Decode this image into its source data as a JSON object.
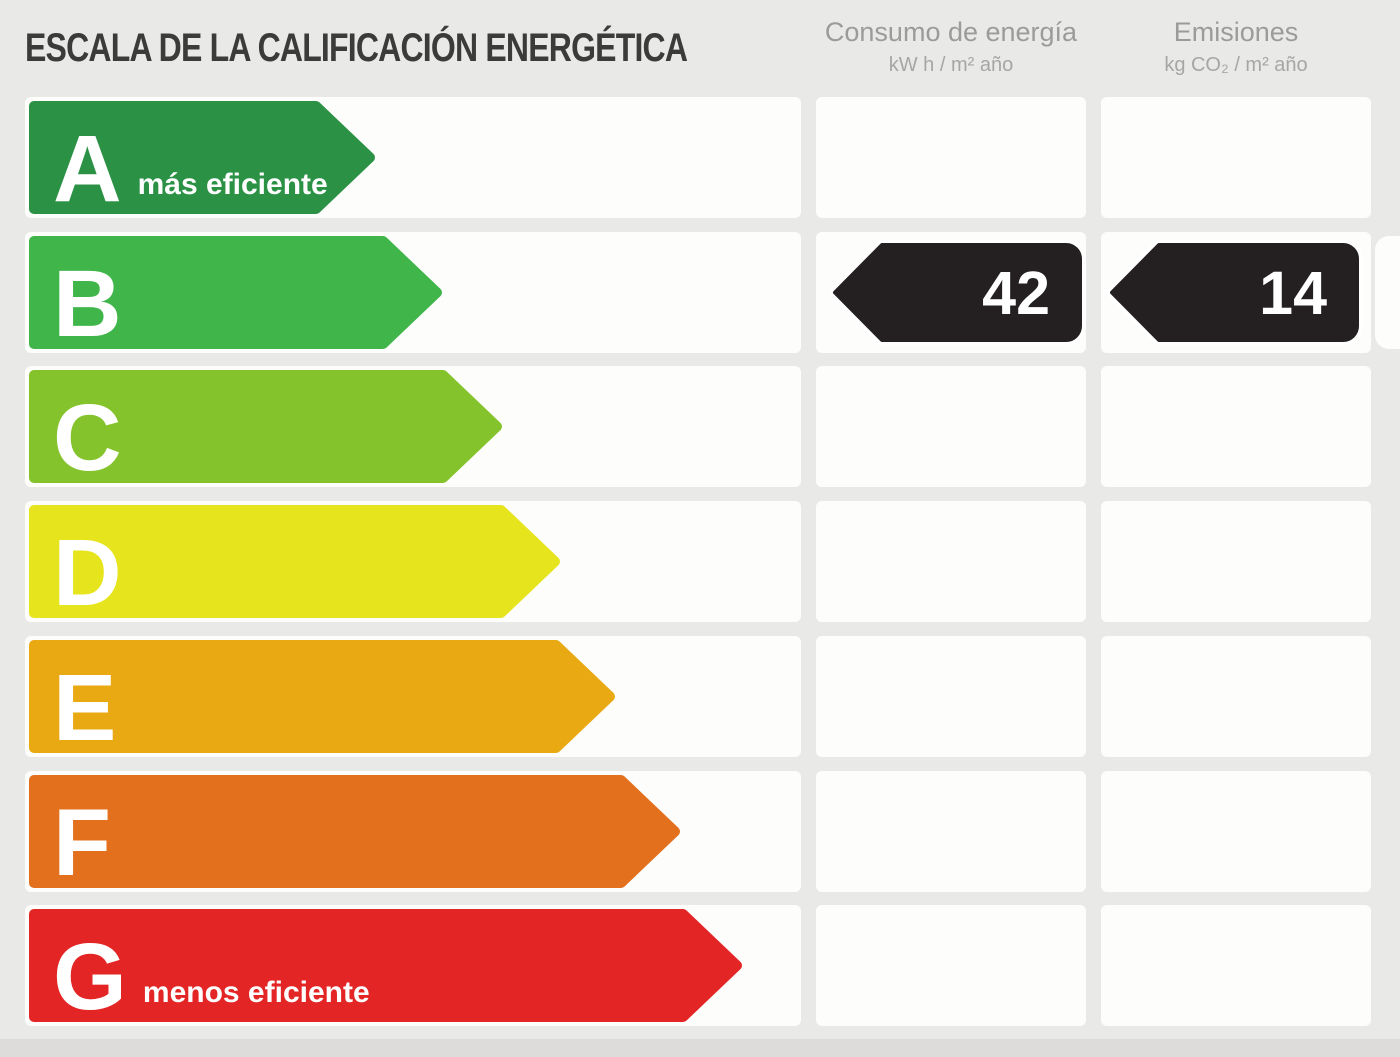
{
  "title": "ESCALA DE LA CALIFICACIÓN ENERGÉTICA",
  "columns": {
    "consumption": {
      "label": "Consumo de energía",
      "units": "kW h / m² año"
    },
    "emissions": {
      "label": "Emisiones",
      "units": "kg CO₂ / m² año"
    }
  },
  "rating": {
    "letter": "B",
    "consumption_value": "42",
    "emissions_value": "14",
    "badge_color": "#242021",
    "badge_text_color": "#ffffff"
  },
  "scale_rows": [
    {
      "letter": "A",
      "color": "#2b9245",
      "rect_end": 291,
      "tip": 345,
      "sublabel": "más eficiente"
    },
    {
      "letter": "B",
      "color": "#3fb54a",
      "rect_end": 358,
      "tip": 412,
      "sublabel": ""
    },
    {
      "letter": "C",
      "color": "#84c32c",
      "rect_end": 418,
      "tip": 472,
      "sublabel": ""
    },
    {
      "letter": "D",
      "color": "#e6e41c",
      "rect_end": 476,
      "tip": 530,
      "sublabel": ""
    },
    {
      "letter": "E",
      "color": "#e9a912",
      "rect_end": 531,
      "tip": 585,
      "sublabel": ""
    },
    {
      "letter": "F",
      "color": "#e2701c",
      "rect_end": 596,
      "tip": 650,
      "sublabel": ""
    },
    {
      "letter": "G",
      "color": "#e32526",
      "rect_end": 658,
      "tip": 712,
      "sublabel": "menos eficiente"
    }
  ],
  "chart_data": {
    "type": "bar",
    "title": "ESCALA DE LA CALIFICACIÓN ENERGÉTICA",
    "orientation": "horizontal",
    "categories": [
      "A",
      "B",
      "C",
      "D",
      "E",
      "F",
      "G"
    ],
    "values": [
      345,
      412,
      472,
      530,
      585,
      650,
      712
    ],
    "values_note": "relative arrow lengths in px (no numeric axis shown)",
    "bar_colors": [
      "#2b9245",
      "#3fb54a",
      "#84c32c",
      "#e6e41c",
      "#e9a912",
      "#e2701c",
      "#e32526"
    ],
    "annotations": {
      "A": "más eficiente",
      "G": "menos eficiente"
    },
    "assigned_rating": "B",
    "series": [
      {
        "name": "Consumo de energía (kW h / m² año)",
        "rating": "B",
        "value": 42
      },
      {
        "name": "Emisiones (kg CO₂ / m² año)",
        "rating": "B",
        "value": 14
      }
    ],
    "legend_position": "none",
    "grid": false
  }
}
